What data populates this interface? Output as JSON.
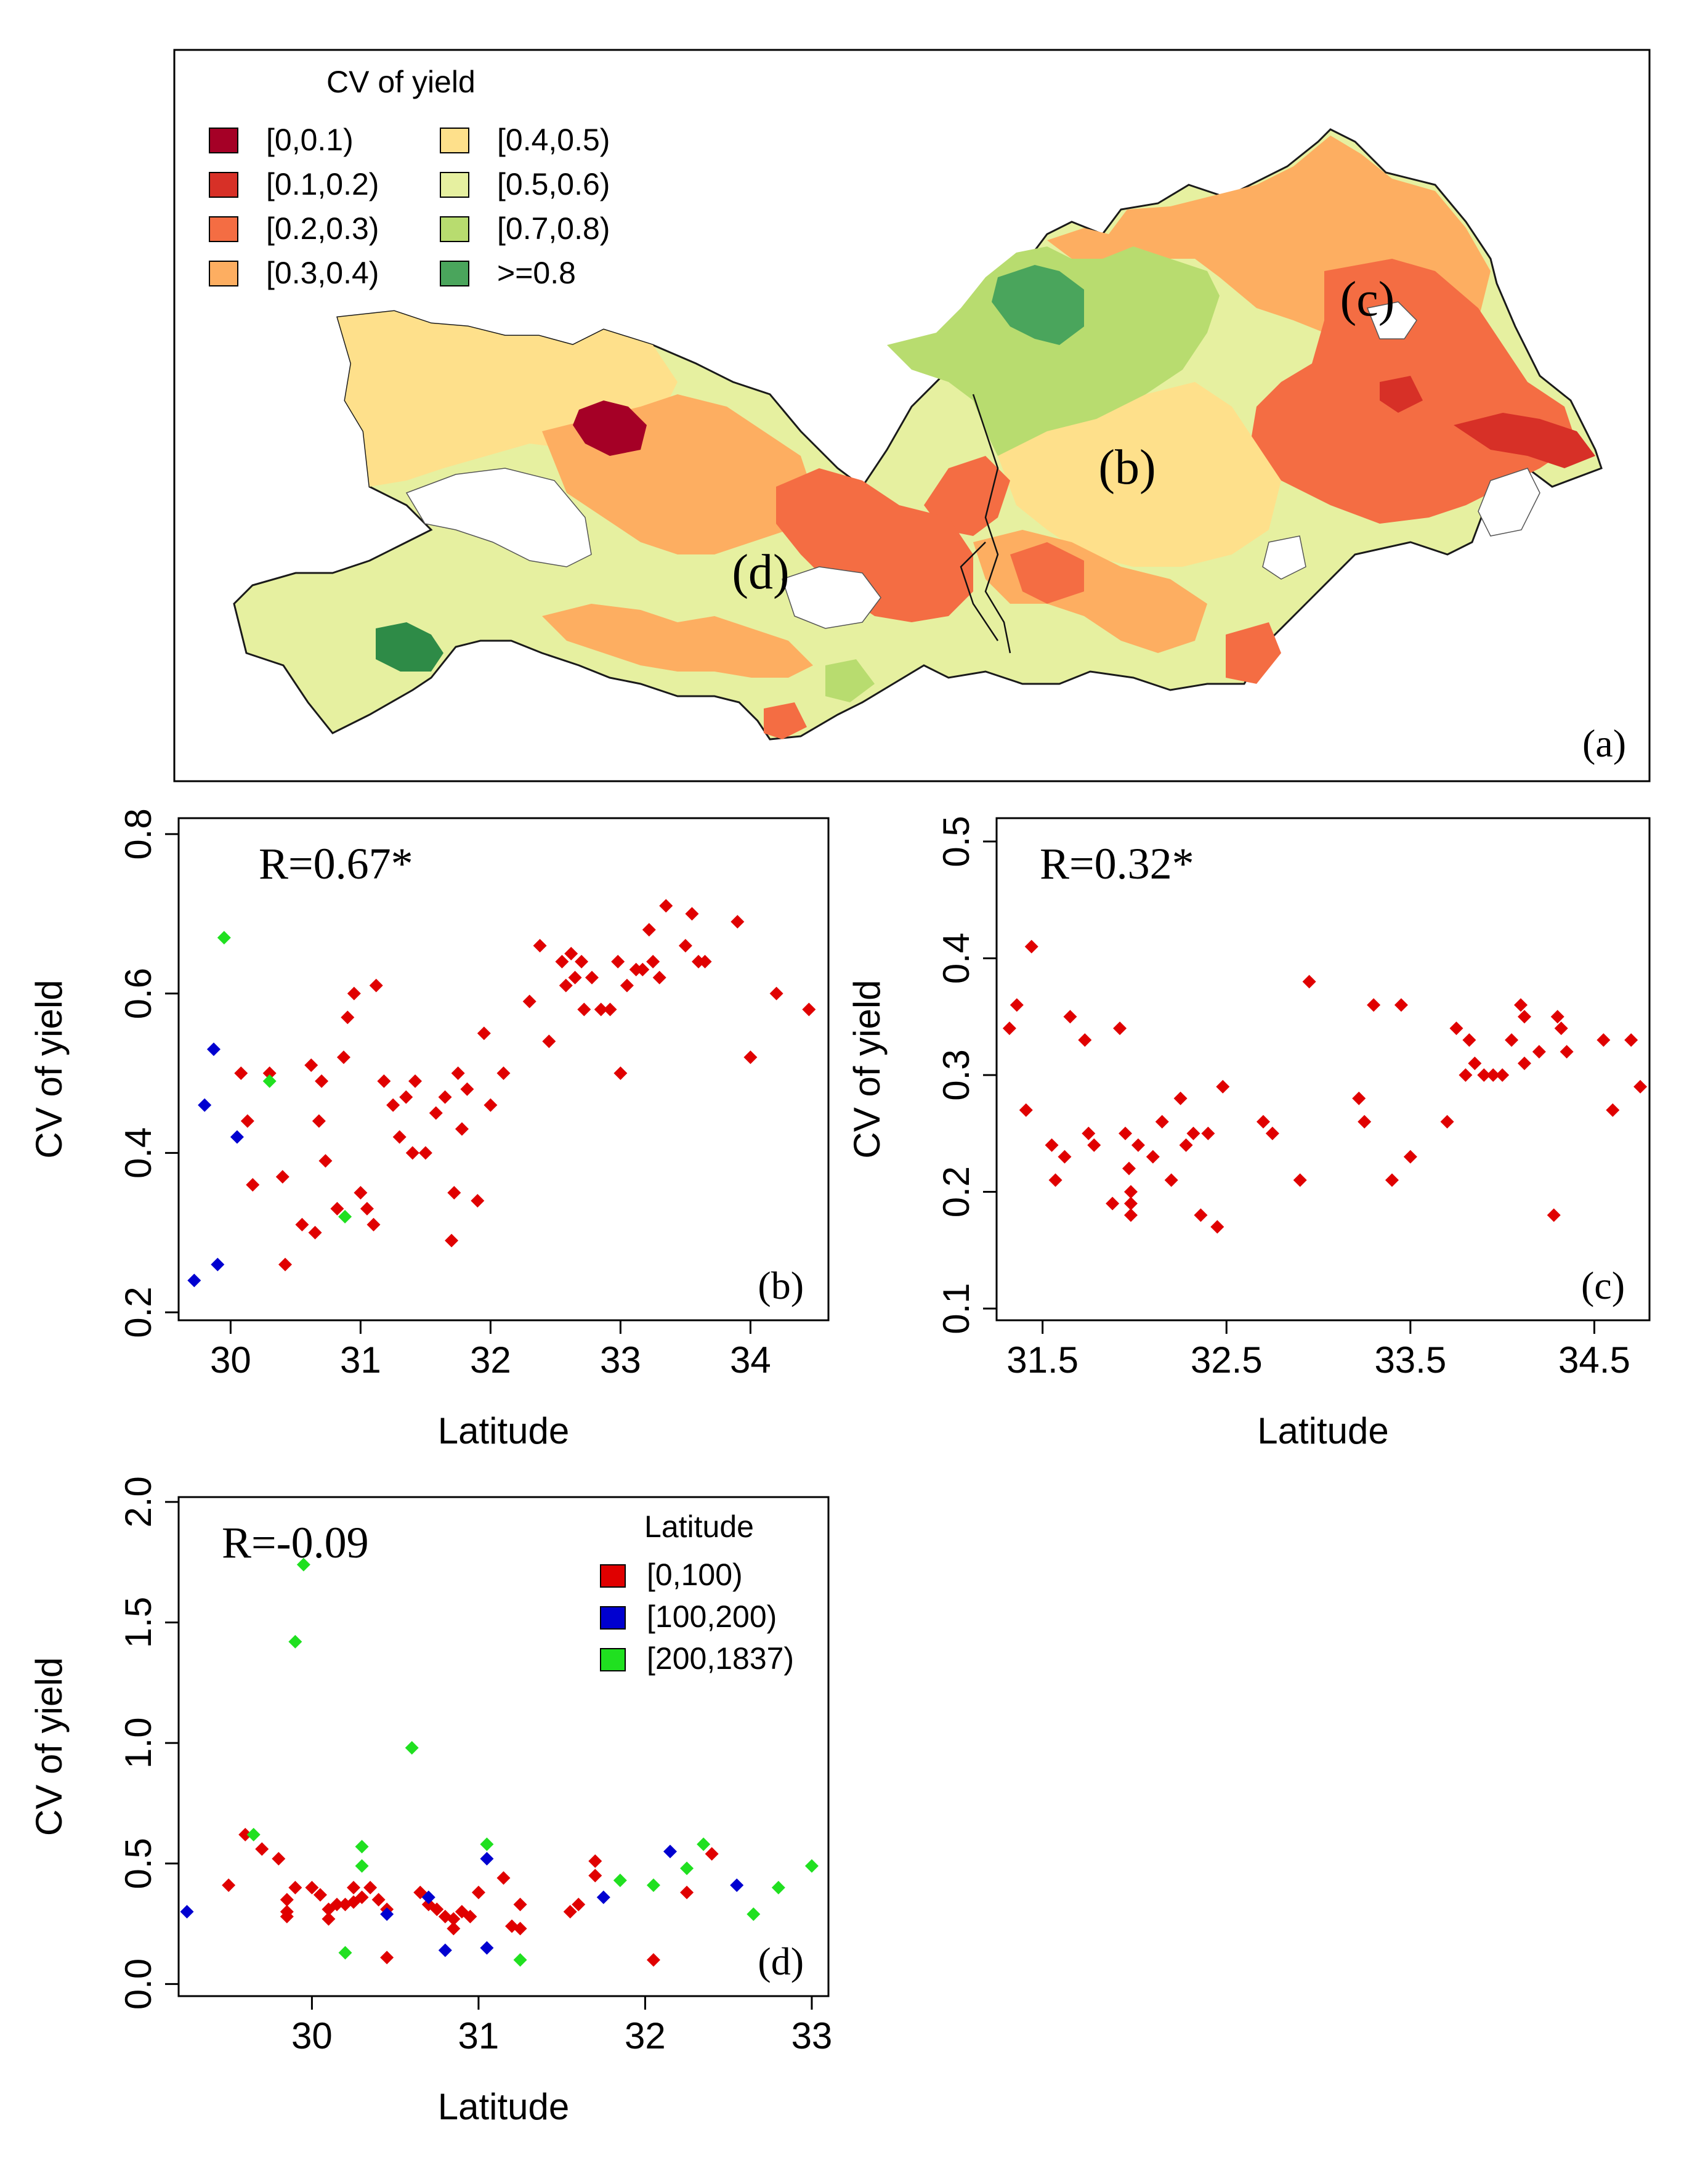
{
  "map": {
    "legend_title": "CV of yield",
    "legend": [
      {
        "label": "[0,0.1)",
        "color": "#a50026"
      },
      {
        "label": "[0.1,0.2)",
        "color": "#d73027"
      },
      {
        "label": "[0.2,0.3)",
        "color": "#f46d43"
      },
      {
        "label": "[0.3,0.4)",
        "color": "#fdae61"
      },
      {
        "label": "[0.4,0.5)",
        "color": "#fee08b"
      },
      {
        "label": "[0.5,0.6)",
        "color": "#e6f0a0"
      },
      {
        "label": "[0.7,0.8)",
        "color": "#b8dc6f"
      },
      {
        "label": ">=0.8",
        "color": "#4aa55c"
      }
    ],
    "region_labels": {
      "b": "(b)",
      "c": "(c)",
      "d": "(d)"
    },
    "panel_label": "(a)"
  },
  "chart_data": [
    {
      "type": "scatter",
      "panel": "(b)",
      "annotation": "R=0.67*",
      "xlabel": "Latitude",
      "ylabel": "CV of yield",
      "xlim": [
        29.6,
        34.6
      ],
      "ylim": [
        0.19,
        0.82
      ],
      "xticks": [
        "30",
        "31",
        "32",
        "33",
        "34"
      ],
      "yticks": [
        "0.2",
        "0.4",
        "0.6",
        "0.8"
      ],
      "series": [
        {
          "name": "[0,100)",
          "color": "#e00000",
          "points": [
            [
              30.08,
              0.5
            ],
            [
              30.13,
              0.44
            ],
            [
              30.17,
              0.36
            ],
            [
              30.3,
              0.5
            ],
            [
              30.4,
              0.37
            ],
            [
              30.42,
              0.26
            ],
            [
              30.55,
              0.31
            ],
            [
              30.62,
              0.51
            ],
            [
              30.65,
              0.3
            ],
            [
              30.68,
              0.44
            ],
            [
              30.7,
              0.49
            ],
            [
              30.73,
              0.39
            ],
            [
              30.82,
              0.33
            ],
            [
              30.87,
              0.52
            ],
            [
              30.9,
              0.57
            ],
            [
              30.95,
              0.6
            ],
            [
              31.0,
              0.35
            ],
            [
              31.05,
              0.33
            ],
            [
              31.1,
              0.31
            ],
            [
              31.12,
              0.61
            ],
            [
              31.18,
              0.49
            ],
            [
              31.25,
              0.46
            ],
            [
              31.3,
              0.42
            ],
            [
              31.35,
              0.47
            ],
            [
              31.4,
              0.4
            ],
            [
              31.42,
              0.49
            ],
            [
              31.5,
              0.4
            ],
            [
              31.58,
              0.45
            ],
            [
              31.65,
              0.47
            ],
            [
              31.7,
              0.29
            ],
            [
              31.72,
              0.35
            ],
            [
              31.75,
              0.5
            ],
            [
              31.78,
              0.43
            ],
            [
              31.82,
              0.48
            ],
            [
              31.9,
              0.34
            ],
            [
              31.95,
              0.55
            ],
            [
              32.0,
              0.46
            ],
            [
              32.1,
              0.5
            ],
            [
              32.3,
              0.59
            ],
            [
              32.38,
              0.66
            ],
            [
              32.45,
              0.54
            ],
            [
              32.55,
              0.64
            ],
            [
              32.58,
              0.61
            ],
            [
              32.62,
              0.65
            ],
            [
              32.65,
              0.62
            ],
            [
              32.7,
              0.64
            ],
            [
              32.72,
              0.58
            ],
            [
              32.78,
              0.62
            ],
            [
              32.85,
              0.58
            ],
            [
              32.92,
              0.58
            ],
            [
              32.98,
              0.64
            ],
            [
              33.0,
              0.5
            ],
            [
              33.05,
              0.61
            ],
            [
              33.12,
              0.63
            ],
            [
              33.17,
              0.63
            ],
            [
              33.22,
              0.68
            ],
            [
              33.25,
              0.64
            ],
            [
              33.3,
              0.62
            ],
            [
              33.35,
              0.71
            ],
            [
              33.5,
              0.66
            ],
            [
              33.55,
              0.7
            ],
            [
              33.6,
              0.64
            ],
            [
              33.65,
              0.64
            ],
            [
              33.9,
              0.69
            ],
            [
              34.0,
              0.52
            ],
            [
              34.2,
              0.6
            ],
            [
              34.45,
              0.58
            ]
          ]
        },
        {
          "name": "[100,200)",
          "color": "#0000d0",
          "points": [
            [
              29.72,
              0.24
            ],
            [
              29.8,
              0.46
            ],
            [
              29.87,
              0.53
            ],
            [
              29.9,
              0.26
            ],
            [
              30.05,
              0.42
            ]
          ]
        },
        {
          "name": "[200,1837)",
          "color": "#20e020",
          "points": [
            [
              29.95,
              0.67
            ],
            [
              30.3,
              0.49
            ],
            [
              30.88,
              0.32
            ]
          ]
        }
      ]
    },
    {
      "type": "scatter",
      "panel": "(c)",
      "annotation": "R=0.32*",
      "xlabel": "Latitude",
      "ylabel": "CV of yield",
      "xlim": [
        31.25,
        34.8
      ],
      "ylim": [
        0.09,
        0.52
      ],
      "xticks": [
        "31.5",
        "32.5",
        "33.5",
        "34.5"
      ],
      "yticks": [
        "0.1",
        "0.2",
        "0.3",
        "0.4",
        "0.5"
      ],
      "series": [
        {
          "name": "[0,100)",
          "color": "#e00000",
          "points": [
            [
              31.32,
              0.34
            ],
            [
              31.36,
              0.36
            ],
            [
              31.41,
              0.27
            ],
            [
              31.44,
              0.41
            ],
            [
              31.55,
              0.24
            ],
            [
              31.57,
              0.21
            ],
            [
              31.62,
              0.23
            ],
            [
              31.65,
              0.35
            ],
            [
              31.73,
              0.33
            ],
            [
              31.75,
              0.25
            ],
            [
              31.78,
              0.24
            ],
            [
              31.88,
              0.19
            ],
            [
              31.92,
              0.34
            ],
            [
              31.95,
              0.25
            ],
            [
              31.97,
              0.22
            ],
            [
              31.98,
              0.2
            ],
            [
              31.98,
              0.18
            ],
            [
              31.98,
              0.19
            ],
            [
              32.02,
              0.24
            ],
            [
              32.1,
              0.23
            ],
            [
              32.15,
              0.26
            ],
            [
              32.2,
              0.21
            ],
            [
              32.25,
              0.28
            ],
            [
              32.28,
              0.24
            ],
            [
              32.32,
              0.25
            ],
            [
              32.36,
              0.18
            ],
            [
              32.4,
              0.25
            ],
            [
              32.45,
              0.17
            ],
            [
              32.48,
              0.29
            ],
            [
              32.7,
              0.26
            ],
            [
              32.75,
              0.25
            ],
            [
              32.9,
              0.21
            ],
            [
              32.95,
              0.38
            ],
            [
              33.22,
              0.28
            ],
            [
              33.25,
              0.26
            ],
            [
              33.3,
              0.36
            ],
            [
              33.4,
              0.21
            ],
            [
              33.45,
              0.36
            ],
            [
              33.5,
              0.23
            ],
            [
              33.7,
              0.26
            ],
            [
              33.75,
              0.34
            ],
            [
              33.8,
              0.3
            ],
            [
              33.82,
              0.33
            ],
            [
              33.85,
              0.31
            ],
            [
              33.9,
              0.3
            ],
            [
              33.95,
              0.3
            ],
            [
              34.0,
              0.3
            ],
            [
              34.05,
              0.33
            ],
            [
              34.1,
              0.36
            ],
            [
              34.12,
              0.35
            ],
            [
              34.12,
              0.31
            ],
            [
              34.2,
              0.32
            ],
            [
              34.28,
              0.18
            ],
            [
              34.3,
              0.35
            ],
            [
              34.32,
              0.34
            ],
            [
              34.35,
              0.32
            ],
            [
              34.55,
              0.33
            ],
            [
              34.6,
              0.27
            ],
            [
              34.7,
              0.33
            ],
            [
              34.75,
              0.29
            ]
          ]
        }
      ]
    },
    {
      "type": "scatter",
      "panel": "(d)",
      "annotation": "R=-0.09",
      "xlabel": "Latitude",
      "ylabel": "CV of yield",
      "xlim": [
        29.2,
        33.1
      ],
      "ylim": [
        -0.05,
        2.02
      ],
      "xticks": [
        "30",
        "31",
        "32",
        "33"
      ],
      "yticks": [
        "0.0",
        "0.5",
        "1.0",
        "1.5",
        "2.0"
      ],
      "legend_title": "Latitude",
      "series": [
        {
          "name": "[0,100)",
          "color": "#e00000",
          "points": [
            [
              29.5,
              0.41
            ],
            [
              29.6,
              0.62
            ],
            [
              29.7,
              0.56
            ],
            [
              29.8,
              0.52
            ],
            [
              29.85,
              0.35
            ],
            [
              29.85,
              0.3
            ],
            [
              29.85,
              0.28
            ],
            [
              29.9,
              0.4
            ],
            [
              30.0,
              0.4
            ],
            [
              30.05,
              0.37
            ],
            [
              30.1,
              0.31
            ],
            [
              30.1,
              0.27
            ],
            [
              30.15,
              0.33
            ],
            [
              30.2,
              0.33
            ],
            [
              30.25,
              0.4
            ],
            [
              30.25,
              0.34
            ],
            [
              30.3,
              0.36
            ],
            [
              30.35,
              0.4
            ],
            [
              30.4,
              0.35
            ],
            [
              30.45,
              0.31
            ],
            [
              30.45,
              0.11
            ],
            [
              30.65,
              0.38
            ],
            [
              30.7,
              0.33
            ],
            [
              30.75,
              0.31
            ],
            [
              30.8,
              0.28
            ],
            [
              30.85,
              0.27
            ],
            [
              30.85,
              0.23
            ],
            [
              30.9,
              0.3
            ],
            [
              30.95,
              0.28
            ],
            [
              31.0,
              0.38
            ],
            [
              31.15,
              0.44
            ],
            [
              31.2,
              0.24
            ],
            [
              31.25,
              0.33
            ],
            [
              31.25,
              0.23
            ],
            [
              31.55,
              0.3
            ],
            [
              31.6,
              0.33
            ],
            [
              31.7,
              0.51
            ],
            [
              31.7,
              0.45
            ],
            [
              32.05,
              0.1
            ],
            [
              32.25,
              0.38
            ],
            [
              32.4,
              0.54
            ]
          ]
        },
        {
          "name": "[100,200)",
          "color": "#0000d0",
          "points": [
            [
              29.25,
              0.3
            ],
            [
              30.45,
              0.29
            ],
            [
              30.7,
              0.36
            ],
            [
              30.8,
              0.14
            ],
            [
              31.05,
              0.52
            ],
            [
              31.05,
              0.15
            ],
            [
              31.75,
              0.36
            ],
            [
              32.15,
              0.55
            ],
            [
              32.55,
              0.41
            ]
          ]
        },
        {
          "name": "[200,1837)",
          "color": "#20e020",
          "points": [
            [
              29.65,
              0.62
            ],
            [
              29.9,
              1.42
            ],
            [
              29.95,
              1.74
            ],
            [
              30.2,
              0.13
            ],
            [
              30.3,
              0.57
            ],
            [
              30.3,
              0.49
            ],
            [
              30.6,
              0.98
            ],
            [
              31.05,
              0.58
            ],
            [
              31.25,
              0.1
            ],
            [
              31.85,
              0.43
            ],
            [
              32.05,
              0.41
            ],
            [
              32.25,
              0.48
            ],
            [
              32.35,
              0.58
            ],
            [
              32.65,
              0.29
            ],
            [
              32.8,
              0.4
            ],
            [
              33.0,
              0.49
            ]
          ]
        }
      ]
    }
  ]
}
